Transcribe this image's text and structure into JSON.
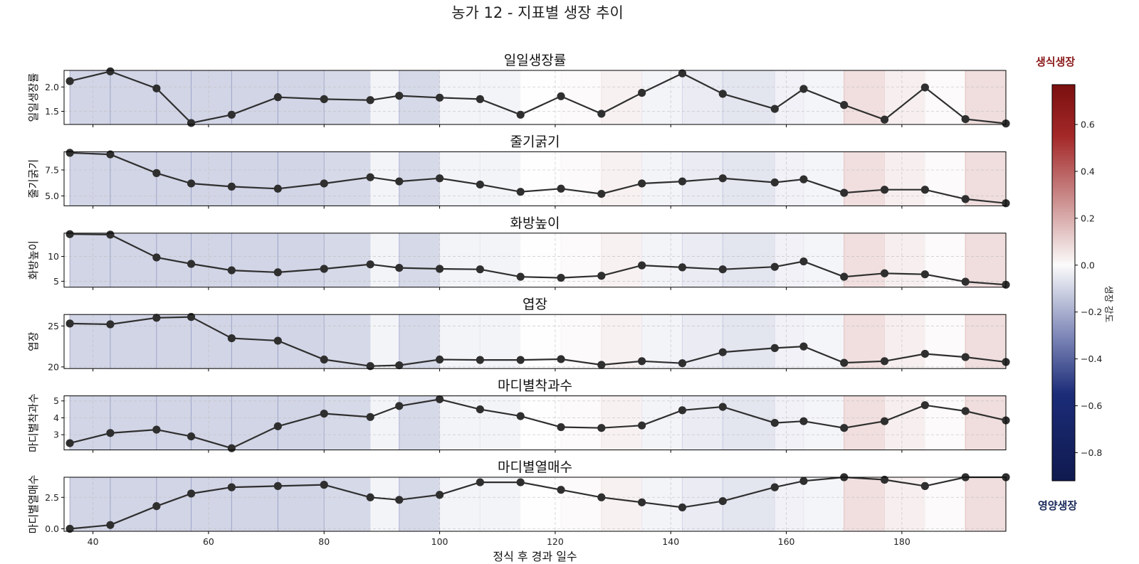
{
  "figure": {
    "title": "농가 12 - 지표별 생장 추이",
    "xlabel": "정식 후 경과 일수"
  },
  "colorbar": {
    "label": "생장 강도",
    "top_label": "생식생장",
    "bottom_label": "영양생장",
    "min": -0.92,
    "max": 0.77,
    "ticks": [
      0.6,
      0.4,
      0.2,
      0.0,
      -0.2,
      -0.4,
      -0.6,
      -0.8
    ],
    "tick_labels": [
      "0.6",
      "0.4",
      "0.2",
      "0.0",
      "−0.2",
      "−0.4",
      "−0.6",
      "−0.8"
    ],
    "colormap_stops": [
      {
        "v": -0.92,
        "color": "#0f1a4f"
      },
      {
        "v": -0.55,
        "color": "#1c2c78"
      },
      {
        "v": -0.3,
        "color": "#7f88b8"
      },
      {
        "v": 0.0,
        "color": "#fbfbfb"
      },
      {
        "v": 0.3,
        "color": "#c88585"
      },
      {
        "v": 0.55,
        "color": "#a42828"
      },
      {
        "v": 0.77,
        "color": "#7a0f0f"
      }
    ]
  },
  "chart_data": {
    "type": "line",
    "xlim": [
      35,
      198
    ],
    "x_ticks": [
      40,
      60,
      80,
      100,
      120,
      140,
      160,
      180
    ],
    "x": [
      36,
      43,
      51,
      57,
      64,
      72,
      80,
      88,
      93,
      100,
      107,
      114,
      121,
      128,
      135,
      142,
      149,
      158,
      163,
      170,
      177,
      184,
      191,
      198
    ],
    "background_bands": [
      {
        "from": 36,
        "to": 43,
        "intensity": -0.33
      },
      {
        "from": 43,
        "to": 51,
        "intensity": -0.33
      },
      {
        "from": 51,
        "to": 57,
        "intensity": -0.33
      },
      {
        "from": 57,
        "to": 64,
        "intensity": -0.33
      },
      {
        "from": 64,
        "to": 72,
        "intensity": -0.33
      },
      {
        "from": 72,
        "to": 80,
        "intensity": -0.33
      },
      {
        "from": 80,
        "to": 88,
        "intensity": -0.3
      },
      {
        "from": 88,
        "to": 93,
        "intensity": -0.08
      },
      {
        "from": 93,
        "to": 100,
        "intensity": -0.3
      },
      {
        "from": 100,
        "to": 107,
        "intensity": -0.08
      },
      {
        "from": 107,
        "to": 114,
        "intensity": -0.08
      },
      {
        "from": 114,
        "to": 121,
        "intensity": 0.0
      },
      {
        "from": 121,
        "to": 128,
        "intensity": 0.03
      },
      {
        "from": 128,
        "to": 135,
        "intensity": 0.1
      },
      {
        "from": 135,
        "to": 142,
        "intensity": -0.08
      },
      {
        "from": 142,
        "to": 149,
        "intensity": -0.15
      },
      {
        "from": 149,
        "to": 158,
        "intensity": -0.2
      },
      {
        "from": 158,
        "to": 163,
        "intensity": -0.1
      },
      {
        "from": 163,
        "to": 170,
        "intensity": -0.07
      },
      {
        "from": 170,
        "to": 177,
        "intensity": 0.24
      },
      {
        "from": 177,
        "to": 184,
        "intensity": 0.12
      },
      {
        "from": 184,
        "to": 191,
        "intensity": 0.03
      },
      {
        "from": 191,
        "to": 198,
        "intensity": 0.25
      }
    ],
    "panels": [
      {
        "title": "일일생장률",
        "ylabel": "일일생장률",
        "ylim": [
          1.23,
          2.34
        ],
        "y_ticks": [
          1.5,
          2.0
        ],
        "y_tick_labels": [
          "1.5",
          "2.0"
        ],
        "values": [
          2.12,
          2.32,
          1.97,
          1.26,
          1.43,
          1.79,
          1.75,
          1.73,
          1.82,
          1.78,
          1.75,
          1.43,
          1.81,
          1.45,
          1.88,
          2.28,
          1.86,
          1.55,
          1.96,
          1.63,
          1.33,
          1.99,
          1.34,
          1.25
        ]
      },
      {
        "title": "줄기굵기",
        "ylabel": "줄기굵기",
        "ylim": [
          4.05,
          9.25
        ],
        "y_ticks": [
          5.0,
          7.5
        ],
        "y_tick_labels": [
          "5.0",
          "7.5"
        ],
        "values": [
          9.15,
          9.0,
          7.2,
          6.2,
          5.9,
          5.7,
          6.2,
          6.8,
          6.4,
          6.7,
          6.1,
          5.4,
          5.7,
          5.2,
          6.2,
          6.4,
          6.7,
          6.3,
          6.6,
          5.3,
          5.6,
          5.6,
          4.7,
          4.3
        ]
      },
      {
        "title": "화방높이",
        "ylabel": "화방높이",
        "ylim": [
          3.8,
          14.7
        ],
        "y_ticks": [
          5,
          10
        ],
        "y_tick_labels": [
          "5",
          "10"
        ],
        "values": [
          14.5,
          14.4,
          9.8,
          8.5,
          7.2,
          6.8,
          7.5,
          8.4,
          7.7,
          7.5,
          7.4,
          5.9,
          5.7,
          6.1,
          8.2,
          7.8,
          7.4,
          7.9,
          9.0,
          5.9,
          6.6,
          6.4,
          4.9,
          4.3
        ]
      },
      {
        "title": "엽장",
        "ylabel": "엽장",
        "ylim": [
          19.8,
          26.4
        ],
        "y_ticks": [
          20,
          25
        ],
        "y_tick_labels": [
          "20",
          "25"
        ],
        "values": [
          25.3,
          25.2,
          26.0,
          26.1,
          23.5,
          23.2,
          20.9,
          20.1,
          20.2,
          20.9,
          20.85,
          20.85,
          20.95,
          20.25,
          20.7,
          20.45,
          21.8,
          22.3,
          22.5,
          20.5,
          20.7,
          21.6,
          21.2,
          20.6
        ]
      },
      {
        "title": "마디별착과수",
        "ylabel": "마디별착과수",
        "ylim": [
          2.1,
          5.3
        ],
        "y_ticks": [
          3,
          4,
          5
        ],
        "y_tick_labels": [
          "3",
          "4",
          "5"
        ],
        "values": [
          2.5,
          3.1,
          3.3,
          2.9,
          2.2,
          3.5,
          4.25,
          4.05,
          4.7,
          5.1,
          4.5,
          4.1,
          3.45,
          3.4,
          3.55,
          4.45,
          4.65,
          3.7,
          3.8,
          3.4,
          3.8,
          4.75,
          4.4,
          3.85
        ]
      },
      {
        "title": "마디별열매수",
        "ylabel": "마디별열매수",
        "ylim": [
          -0.2,
          4.1
        ],
        "y_ticks": [
          0.0,
          2.5
        ],
        "y_tick_labels": [
          "0.0",
          "2.5"
        ],
        "values": [
          0.0,
          0.3,
          1.8,
          2.8,
          3.3,
          3.4,
          3.5,
          2.5,
          2.3,
          2.7,
          3.7,
          3.7,
          3.1,
          2.5,
          2.1,
          1.7,
          2.2,
          3.3,
          3.8,
          4.1,
          3.9,
          3.4,
          4.1,
          4.1
        ]
      }
    ]
  }
}
